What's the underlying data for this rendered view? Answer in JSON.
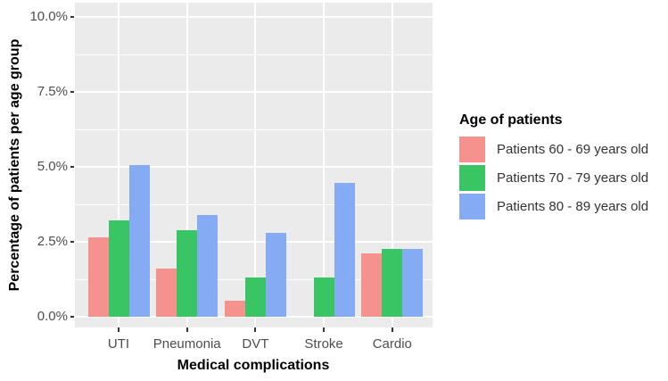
{
  "chart_data": {
    "type": "bar",
    "title": "",
    "xlabel": "Medical complications",
    "ylabel": "Percentage of patients per age group",
    "legend_title": "Age of patients",
    "legend_position": "right",
    "categories": [
      "UTI",
      "Pneumonia",
      "DVT",
      "Stroke",
      "Cardio"
    ],
    "series": [
      {
        "name": "Patients 60 - 69 years old",
        "color": "#F5928E",
        "values": [
          2.65,
          1.6,
          0.55,
          0,
          2.1
        ]
      },
      {
        "name": "Patients 70 - 79 years old",
        "color": "#3AC564",
        "values": [
          3.2,
          2.9,
          1.3,
          1.3,
          2.25
        ]
      },
      {
        "name": "Patients 80 - 89 years old",
        "color": "#84ABF3",
        "values": [
          5.05,
          3.4,
          2.8,
          4.45,
          2.25
        ]
      }
    ],
    "y_ticks": [
      "0.0%",
      "2.5%",
      "5.0%",
      "7.5%",
      "10.0%"
    ],
    "y_tick_values": [
      0,
      2.5,
      5,
      7.5,
      10
    ],
    "y_minor_values": [
      1.25,
      3.75,
      6.25,
      8.75
    ],
    "ylim": [
      0,
      10.5
    ],
    "grid": true,
    "style": {
      "panel_bg": "#EBEBEB",
      "grid_color": "#FFFFFF",
      "tick_label_color": "#4D4D4D",
      "axis_title_color": "#000000",
      "tick_mark_color": "#333333"
    }
  }
}
